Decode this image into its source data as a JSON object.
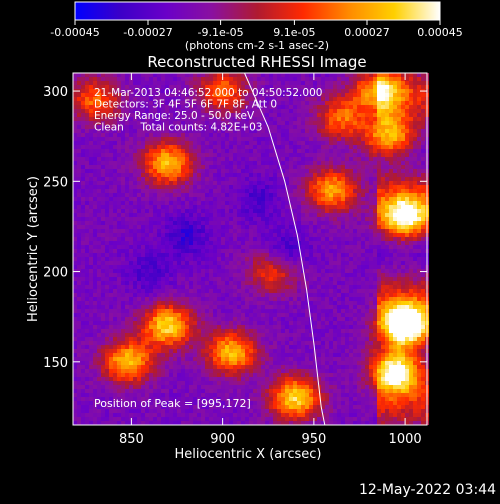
{
  "chart_data": {
    "type": "heatmap",
    "title": "Reconstructed RHESSI Image",
    "xlabel": "Heliocentric X (arcsec)",
    "ylabel": "Heliocentric Y (arcsec)",
    "colorbar": {
      "min": -0.00045,
      "max": 0.00045,
      "tick_values": [
        -0.00045,
        -0.00027,
        -9.1e-05,
        9.1e-05,
        0.00027,
        0.00045
      ],
      "tick_labels": [
        "-0.00045",
        "-0.00027",
        "-9.1e-05",
        "9.1e-05",
        "0.00027",
        "0.00045"
      ],
      "unit_label": "(photons cm-2 s-1 asec-2)",
      "colormap": [
        "#0000ff",
        "#3c00c8",
        "#6a00c8",
        "#8a10a0",
        "#b01a30",
        "#ff2a00",
        "#ff8a00",
        "#ffd000",
        "#ffffff"
      ]
    },
    "x_axis": {
      "range": [
        818,
        1012
      ],
      "ticks": [
        850,
        900,
        950,
        1000
      ]
    },
    "y_axis": {
      "range": [
        115,
        310
      ],
      "ticks": [
        150,
        200,
        250,
        300
      ]
    },
    "annotations": [
      "21-Mar-2013 04:46:52.000 to 04:50:52.000",
      "Detectors: 3F 4F 5F 6F 7F 8F, Att 0",
      "Energy Range: 25.0 - 50.0 keV",
      "Clean     Total counts: 4.82E+03"
    ],
    "peak_label": "Position of Peak = [995,172]",
    "peak": [
      995,
      172
    ],
    "limb_curve": [
      [
        912,
        310
      ],
      [
        925,
        280
      ],
      [
        934,
        250
      ],
      [
        941,
        220
      ],
      [
        946,
        190
      ],
      [
        950,
        160
      ],
      [
        954,
        125
      ],
      [
        956,
        115
      ]
    ],
    "hot_regions": [
      {
        "x": 1000,
        "y": 170,
        "w": 0.9
      },
      {
        "x": 995,
        "y": 145,
        "w": 0.75
      },
      {
        "x": 1000,
        "y": 230,
        "w": 0.65
      },
      {
        "x": 992,
        "y": 275,
        "w": 0.55
      },
      {
        "x": 985,
        "y": 300,
        "w": 0.5
      },
      {
        "x": 870,
        "y": 170,
        "w": 0.6
      },
      {
        "x": 848,
        "y": 150,
        "w": 0.55
      },
      {
        "x": 905,
        "y": 155,
        "w": 0.55
      },
      {
        "x": 940,
        "y": 130,
        "w": 0.6
      },
      {
        "x": 870,
        "y": 260,
        "w": 0.55
      },
      {
        "x": 960,
        "y": 245,
        "w": 0.5
      },
      {
        "x": 900,
        "y": 300,
        "w": 0.4
      },
      {
        "x": 830,
        "y": 295,
        "w": 0.4
      },
      {
        "x": 928,
        "y": 200,
        "w": 0.35
      },
      {
        "x": 965,
        "y": 285,
        "w": 0.4
      }
    ],
    "cold_regions": [
      {
        "x": 880,
        "y": 220,
        "w": 0.45
      },
      {
        "x": 935,
        "y": 210,
        "w": 0.5
      },
      {
        "x": 860,
        "y": 200,
        "w": 0.35
      },
      {
        "x": 920,
        "y": 240,
        "w": 0.35
      }
    ]
  },
  "footer": {
    "timestamp": "12-May-2022 03:44"
  }
}
